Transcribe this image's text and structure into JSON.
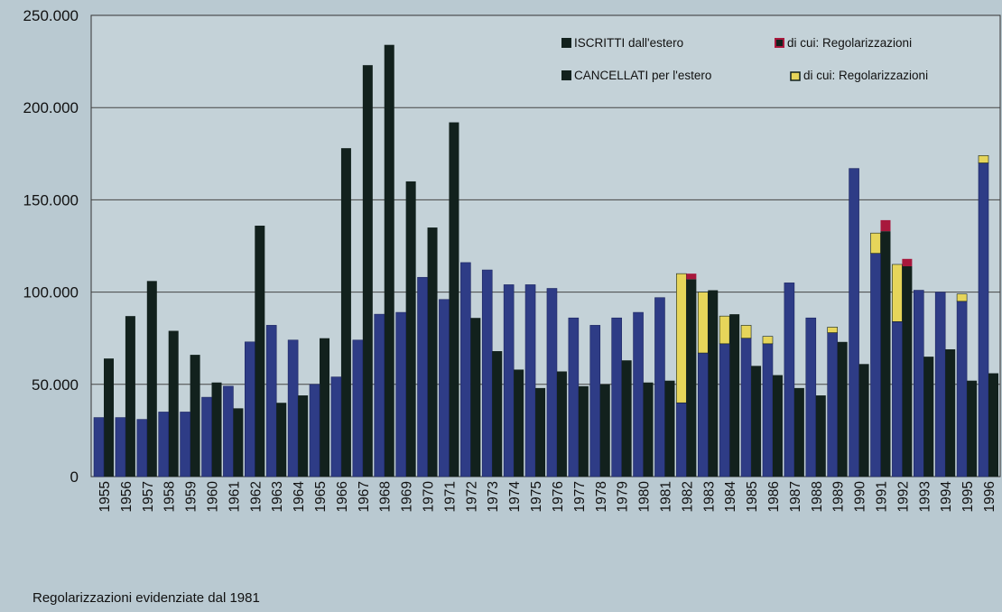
{
  "chart_data": {
    "type": "bar",
    "title": "",
    "xlabel": "",
    "ylabel": "",
    "ylim": [
      0,
      250000
    ],
    "yticks": [
      0,
      50000,
      100000,
      150000,
      200000,
      250000
    ],
    "ytick_labels": [
      "0",
      "50.000",
      "100.000",
      "150.000",
      "200.000",
      "250.000"
    ],
    "grid": true,
    "legend_position": "top-right",
    "categories": [
      "1955",
      "1956",
      "1957",
      "1958",
      "1959",
      "1960",
      "1961",
      "1962",
      "1963",
      "1964",
      "1965",
      "1966",
      "1967",
      "1968",
      "1969",
      "1970",
      "1971",
      "1972",
      "1973",
      "1974",
      "1975",
      "1976",
      "1977",
      "1978",
      "1979",
      "1980",
      "1981",
      "1982",
      "1983",
      "1984",
      "1985",
      "1986",
      "1987",
      "1988",
      "1989",
      "1990",
      "1991",
      "1992",
      "1993",
      "1994",
      "1995",
      "1996"
    ],
    "series": [
      {
        "name": "ISCRITTI dall'estero",
        "color": "#12211d",
        "values": [
          64000,
          87000,
          106000,
          79000,
          66000,
          51000,
          37000,
          136000,
          40000,
          44000,
          75000,
          178000,
          223000,
          234000,
          160000,
          135000,
          192000,
          86000,
          68000,
          58000,
          48000,
          57000,
          49000,
          50000,
          63000,
          51000,
          52000,
          110000,
          101000,
          88000,
          60000,
          55000,
          48000,
          44000,
          73000,
          61000,
          139000,
          118000,
          65000,
          69000,
          52000,
          56000
        ]
      },
      {
        "name": "di cui: Regolarizzazioni",
        "color": "#a8183c",
        "values": [
          0,
          0,
          0,
          0,
          0,
          0,
          0,
          0,
          0,
          0,
          0,
          0,
          0,
          0,
          0,
          0,
          0,
          0,
          0,
          0,
          0,
          0,
          0,
          0,
          0,
          0,
          0,
          3000,
          0,
          0,
          0,
          0,
          0,
          0,
          0,
          0,
          6000,
          4000,
          0,
          0,
          0,
          0
        ]
      },
      {
        "name": "CANCELLATI per l'estero",
        "color": "#2e3c86",
        "values": [
          32000,
          32000,
          31000,
          35000,
          35000,
          43000,
          49000,
          73000,
          82000,
          74000,
          50000,
          54000,
          74000,
          88000,
          89000,
          108000,
          96000,
          116000,
          112000,
          104000,
          104000,
          102000,
          86000,
          82000,
          86000,
          89000,
          97000,
          110000,
          100000,
          87000,
          82000,
          76000,
          105000,
          86000,
          81000,
          167000,
          132000,
          115000,
          101000,
          100000,
          99000,
          174000
        ]
      },
      {
        "name": "di cui: Regolarizzazioni",
        "color": "#e6d55a",
        "values": [
          0,
          0,
          0,
          0,
          0,
          0,
          0,
          0,
          0,
          0,
          0,
          0,
          0,
          0,
          0,
          0,
          0,
          0,
          0,
          0,
          0,
          0,
          0,
          0,
          0,
          0,
          0,
          70000,
          33000,
          15000,
          7000,
          4000,
          0,
          0,
          3000,
          0,
          11000,
          31000,
          0,
          0,
          4000,
          4000
        ]
      }
    ],
    "annotations": [
      "Regolarizzazioni evidenziate dal 1981"
    ]
  }
}
